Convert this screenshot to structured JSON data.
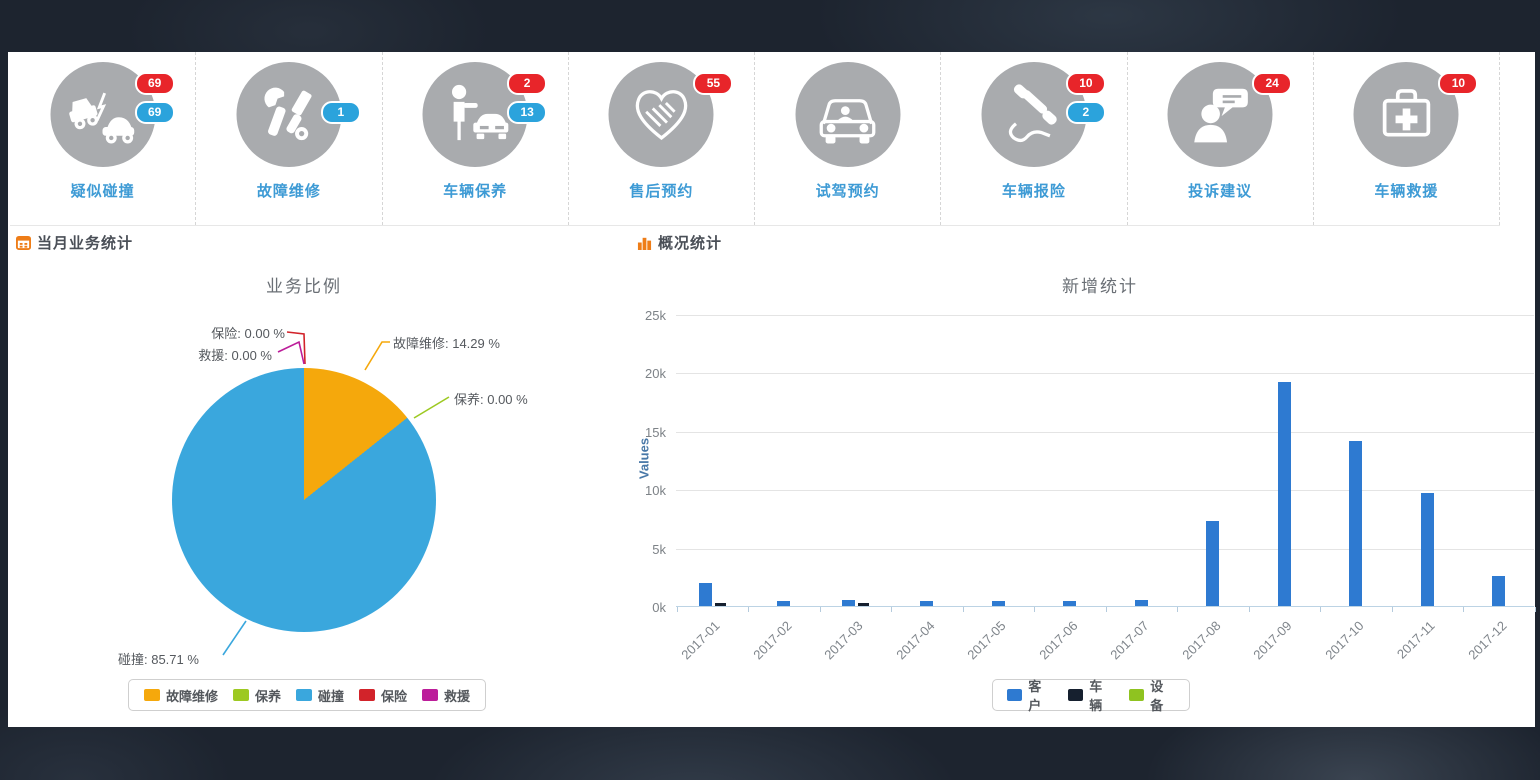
{
  "page": {
    "background": "#1d242f",
    "panel_background": "#ffffff"
  },
  "badge_colors": {
    "red": "#e8252a",
    "blue": "#2ba3dc"
  },
  "quick_actions": [
    {
      "label": "疑似碰撞",
      "icon": "car-crash-icon",
      "badges": [
        {
          "color": "red",
          "value": "69"
        },
        {
          "color": "blue",
          "value": "69"
        }
      ]
    },
    {
      "label": "故障维修",
      "icon": "repair-tools-icon",
      "badges": [
        {
          "color": "blue",
          "value": "1"
        }
      ]
    },
    {
      "label": "车辆保养",
      "icon": "person-taxi-icon",
      "badges": [
        {
          "color": "red",
          "value": "2"
        },
        {
          "color": "blue",
          "value": "13"
        }
      ]
    },
    {
      "label": "售后预约",
      "icon": "handshake-heart-icon",
      "badges": [
        {
          "color": "red",
          "value": "55"
        }
      ]
    },
    {
      "label": "试驾预约",
      "icon": "car-front-icon",
      "badges": []
    },
    {
      "label": "车辆报险",
      "icon": "phone-handset-icon",
      "badges": [
        {
          "color": "red",
          "value": "10"
        },
        {
          "color": "blue",
          "value": "2"
        }
      ]
    },
    {
      "label": "投诉建议",
      "icon": "person-speech-icon",
      "badges": [
        {
          "color": "red",
          "value": "24"
        }
      ]
    },
    {
      "label": "车辆救援",
      "icon": "first-aid-kit-icon",
      "badges": [
        {
          "color": "red",
          "value": "10"
        }
      ]
    }
  ],
  "sections": {
    "monthly": {
      "title": "当月业务统计",
      "icon": "calendar-icon",
      "icon_color": "#ee7d18"
    },
    "overview": {
      "title": "概况统计",
      "icon": "bar-chart-icon",
      "icon_color": "#ee7d18"
    }
  },
  "chart_data": [
    {
      "type": "pie",
      "title": "业务比例",
      "slices": [
        {
          "label": "故障维修",
          "value": 14.29,
          "color": "#f5a80c"
        },
        {
          "label": "保养",
          "value": 0.0,
          "color": "#9dc922"
        },
        {
          "label": "碰撞",
          "value": 85.71,
          "color": "#3aa7dd"
        },
        {
          "label": "保险",
          "value": 0.0,
          "color": "#d2232a"
        },
        {
          "label": "救援",
          "value": 0.0,
          "color": "#bc1d9a"
        }
      ],
      "callouts": {
        "baoxian": "保险: 0.00 %",
        "jiuyuan": "救援: 0.00 %",
        "guzhang": "故障维修: 14.29 %",
        "baoyang": "保养: 0.00 %",
        "pengzhuang": "碰撞: 85.71 %"
      },
      "legend": [
        "故障维修",
        "保养",
        "碰撞",
        "保险",
        "救援"
      ],
      "legend_position": "bottom"
    },
    {
      "type": "bar",
      "title": "新增统计",
      "ylabel": "Values",
      "ylim": [
        0,
        25000
      ],
      "yticks": [
        "25k",
        "20k",
        "15k",
        "10k",
        "5k",
        "0k"
      ],
      "grid": true,
      "categories": [
        "2017-01",
        "2017-02",
        "2017-03",
        "2017-04",
        "2017-05",
        "2017-06",
        "2017-07",
        "2017-08",
        "2017-09",
        "2017-10",
        "2017-11",
        "2017-12"
      ],
      "series": [
        {
          "name": "客户",
          "color": "#2e7ad1",
          "values": [
            2000,
            400,
            500,
            400,
            400,
            400,
            500,
            7300,
            19200,
            14100,
            9700,
            2600
          ]
        },
        {
          "name": "车辆",
          "color": "#16202f",
          "values": [
            300,
            0,
            300,
            0,
            0,
            0,
            0,
            0,
            0,
            0,
            0,
            0
          ]
        },
        {
          "name": "设备",
          "color": "#8fc320",
          "values": [
            0,
            0,
            0,
            0,
            0,
            0,
            0,
            0,
            0,
            0,
            0,
            0
          ]
        }
      ],
      "legend_position": "bottom"
    }
  ]
}
